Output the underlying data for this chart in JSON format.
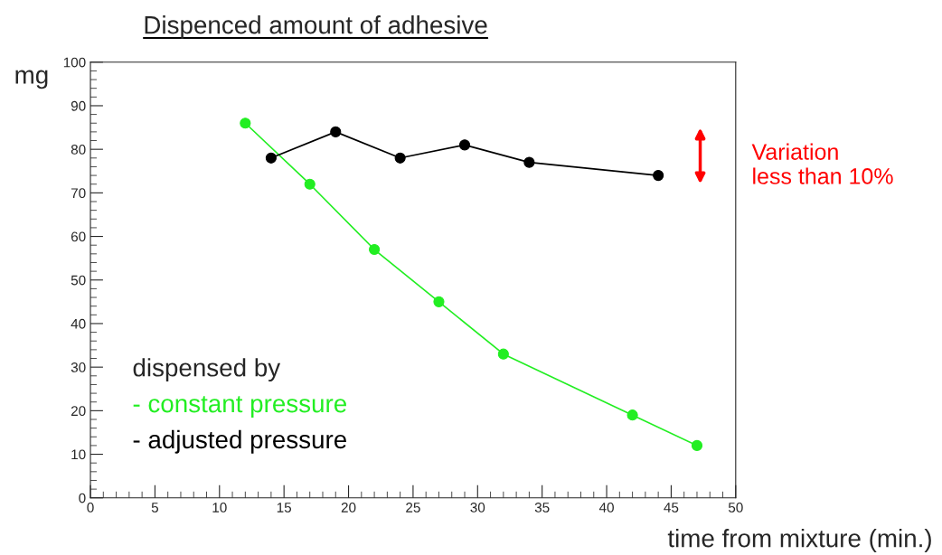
{
  "chart_data": {
    "type": "line",
    "title": "Dispenced amount of adhesive",
    "xlabel": "time from mixture (min.)",
    "ylabel": "mg",
    "legend_title": "dispensed by",
    "series": [
      {
        "name": "- constant pressure",
        "color": "#22ee22",
        "x": [
          12,
          17,
          22,
          27,
          32,
          42,
          47
        ],
        "values": [
          86,
          72,
          57,
          45,
          33,
          19,
          12
        ]
      },
      {
        "name": "- adjusted pressure",
        "color": "#000000",
        "x": [
          14,
          19,
          24,
          29,
          34,
          44
        ],
        "values": [
          78,
          84,
          78,
          81,
          77,
          74
        ]
      }
    ],
    "xlim": [
      0,
      50
    ],
    "xticks": [
      0,
      5,
      10,
      15,
      20,
      25,
      30,
      35,
      40,
      45,
      50
    ],
    "ylim": [
      0,
      100
    ],
    "yticks": [
      0,
      10,
      20,
      30,
      40,
      50,
      60,
      70,
      80,
      90,
      100
    ],
    "marker": "circle",
    "line_style": "solid",
    "grid": false,
    "legend": "bottom left",
    "annotations": [
      "Variation\nless than 10%"
    ]
  }
}
